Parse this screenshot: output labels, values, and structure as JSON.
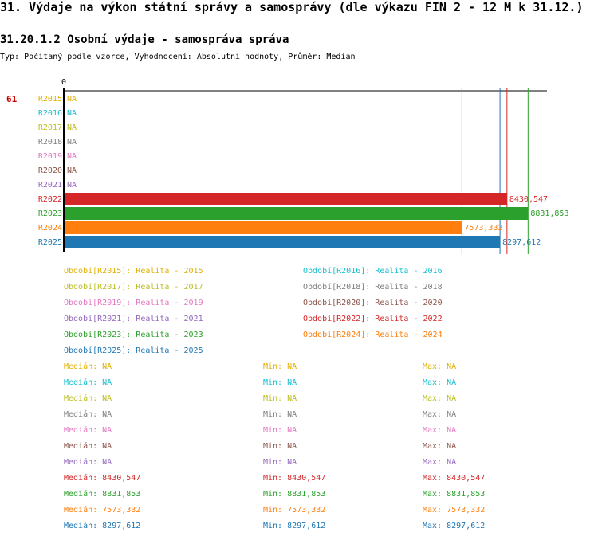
{
  "header": {
    "title": "31. Výdaje na výkon státní správy a samosprávy (dle výkazu FIN 2 - 12 M k 31.12.)",
    "subtitle": "31.20.1.2 Osobní výdaje - samospráva správa",
    "meta": "Typ: Počítaný podle vzorce, Vyhodnocení: Absolutní hodnoty, Průměr: Medián"
  },
  "chart_data": {
    "type": "bar",
    "orientation": "horizontal",
    "row_marker": "61",
    "axis_zero_label": "0",
    "xlim": [
      0,
      9100
    ],
    "categories": [
      "R2015",
      "R2016",
      "R2017",
      "R2018",
      "R2019",
      "R2020",
      "R2021",
      "R2022",
      "R2023",
      "R2024",
      "R2025"
    ],
    "values": [
      null,
      null,
      null,
      null,
      null,
      null,
      null,
      8430.547,
      8831.853,
      7573.332,
      8297.612
    ],
    "value_labels": [
      "NA",
      "NA",
      "NA",
      "NA",
      "NA",
      "NA",
      "NA",
      "8430,547",
      "8831,853",
      "7573,332",
      "8297,612"
    ],
    "colors": [
      "#e0b000",
      "#17becf",
      "#bcbd22",
      "#7f7f7f",
      "#e377c2",
      "#8c564b",
      "#9467bd",
      "#d62728",
      "#2ca02c",
      "#ff7f0e",
      "#1f77b4"
    ],
    "legend": [
      "Období[R2015]: Realita - 2015",
      "Období[R2016]: Realita - 2016",
      "Období[R2017]: Realita - 2017",
      "Období[R2018]: Realita - 2018",
      "Období[R2019]: Realita - 2019",
      "Období[R2020]: Realita - 2020",
      "Období[R2021]: Realita - 2021",
      "Období[R2022]: Realita - 2022",
      "Období[R2023]: Realita - 2023",
      "Období[R2024]: Realita - 2024",
      "Období[R2025]: Realita - 2025"
    ],
    "stats": [
      {
        "median": "Medián: NA",
        "min": "Min: NA",
        "max": "Max: NA"
      },
      {
        "median": "Medián: NA",
        "min": "Min: NA",
        "max": "Max: NA"
      },
      {
        "median": "Medián: NA",
        "min": "Min: NA",
        "max": "Max: NA"
      },
      {
        "median": "Medián: NA",
        "min": "Min: NA",
        "max": "Max: NA"
      },
      {
        "median": "Medián: NA",
        "min": "Min: NA",
        "max": "Max: NA"
      },
      {
        "median": "Medián: NA",
        "min": "Min: NA",
        "max": "Max: NA"
      },
      {
        "median": "Medián: NA",
        "min": "Min: NA",
        "max": "Max: NA"
      },
      {
        "median": "Medián: 8430,547",
        "min": "Min: 8430,547",
        "max": "Max: 8430,547"
      },
      {
        "median": "Medián: 8831,853",
        "min": "Min: 8831,853",
        "max": "Max: 8831,853"
      },
      {
        "median": "Medián: 7573,332",
        "min": "Min: 7573,332",
        "max": "Max: 7573,332"
      },
      {
        "median": "Medián: 8297,612",
        "min": "Min: 8297,612",
        "max": "Max: 8297,612"
      }
    ]
  }
}
